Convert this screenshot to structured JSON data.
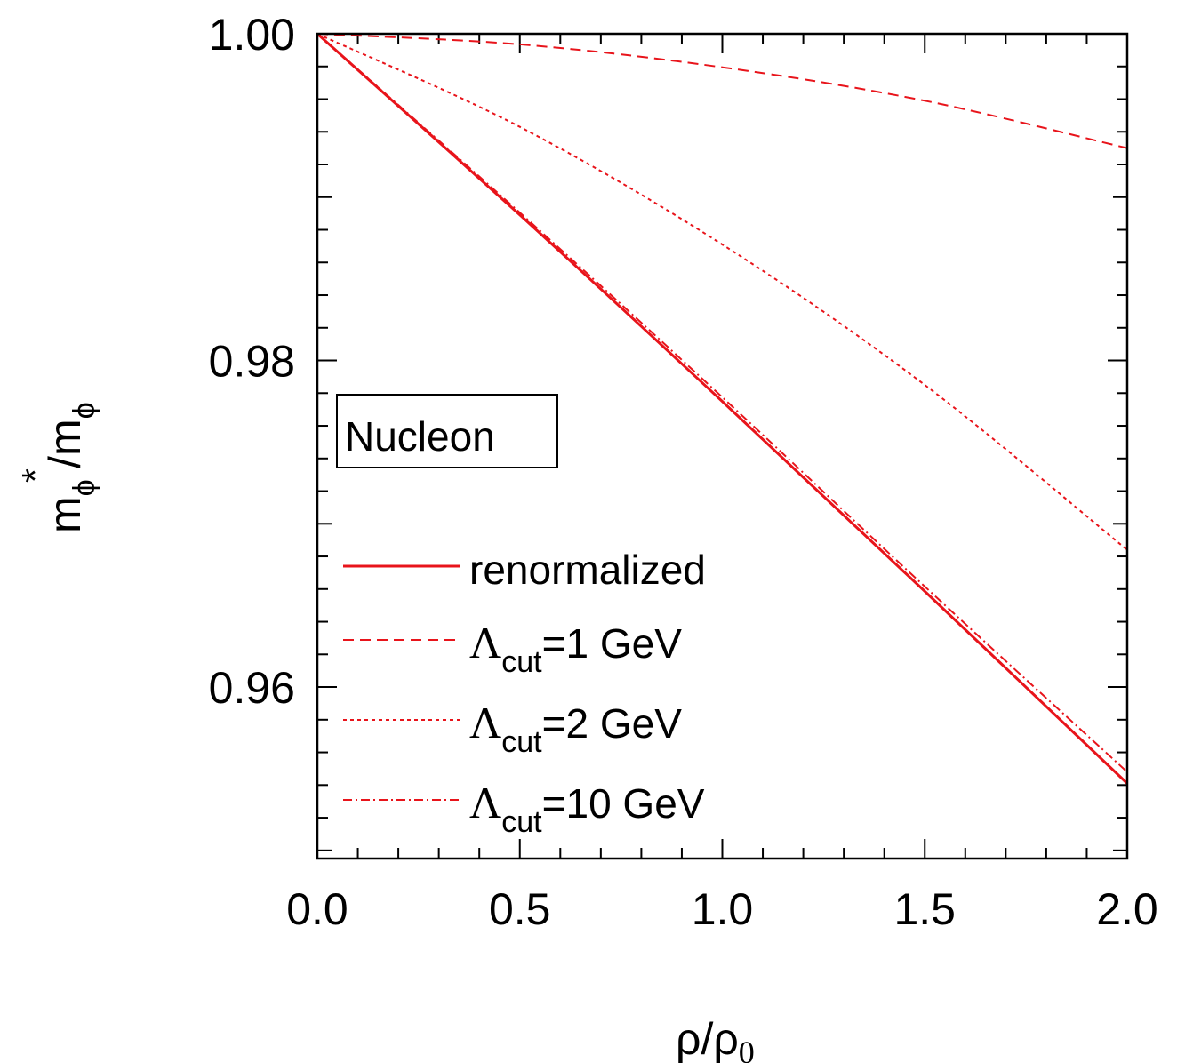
{
  "chart_data": {
    "type": "line",
    "xlim": [
      0,
      2
    ],
    "ylim": [
      0.9495,
      1.0
    ],
    "x_ticks": [
      "0.0",
      "0.5",
      "1.0",
      "1.5",
      "2.0"
    ],
    "y_ticks": [
      "1.00",
      "0.98",
      "0.96"
    ],
    "xlabel": {
      "base": "ρ/ρ",
      "sub": "0"
    },
    "ylabel": {
      "m": "m",
      "phi1": "ϕ",
      "star": "*",
      "slash": "/m",
      "phi2": "ϕ"
    },
    "annotation": "Nucleon",
    "grid": false,
    "legend_position": "bottom-left",
    "series": [
      {
        "name": "renormalized",
        "legend": {
          "text": "renormalized"
        },
        "style": "solid",
        "color": "#e8141b",
        "x": [
          0,
          0.5,
          1.0,
          1.5,
          2.0
        ],
        "y": [
          1.0,
          0.98891,
          0.97749,
          0.96586,
          0.9541
        ]
      },
      {
        "name": "Λcut=1 GeV",
        "legend": {
          "lambda": "Λ",
          "sub": "cut",
          "rest": "=1 GeV"
        },
        "style": "dashed",
        "color": "#e8141b",
        "x": [
          0,
          0.5,
          1.0,
          1.5,
          2.0
        ],
        "y": [
          1.0,
          0.99935,
          0.99795,
          0.9959,
          0.993
        ]
      },
      {
        "name": "Λcut=2 GeV",
        "legend": {
          "lambda": "Λ",
          "sub": "cut",
          "rest": "=2 GeV"
        },
        "style": "dotted",
        "color": "#e8141b",
        "x": [
          0,
          0.5,
          1.0,
          1.5,
          2.0
        ],
        "y": [
          1.0,
          0.9943,
          0.9871,
          0.9785,
          0.9684
        ]
      },
      {
        "name": "Λcut=10 GeV",
        "legend": {
          "lambda": "Λ",
          "sub": "cut",
          "rest": "=10 GeV"
        },
        "style": "dashdot",
        "color": "#e8141b",
        "x": [
          0,
          0.5,
          1.0,
          1.5,
          2.0
        ],
        "y": [
          1.0,
          0.98905,
          0.97775,
          0.96615,
          0.9548
        ]
      }
    ]
  }
}
